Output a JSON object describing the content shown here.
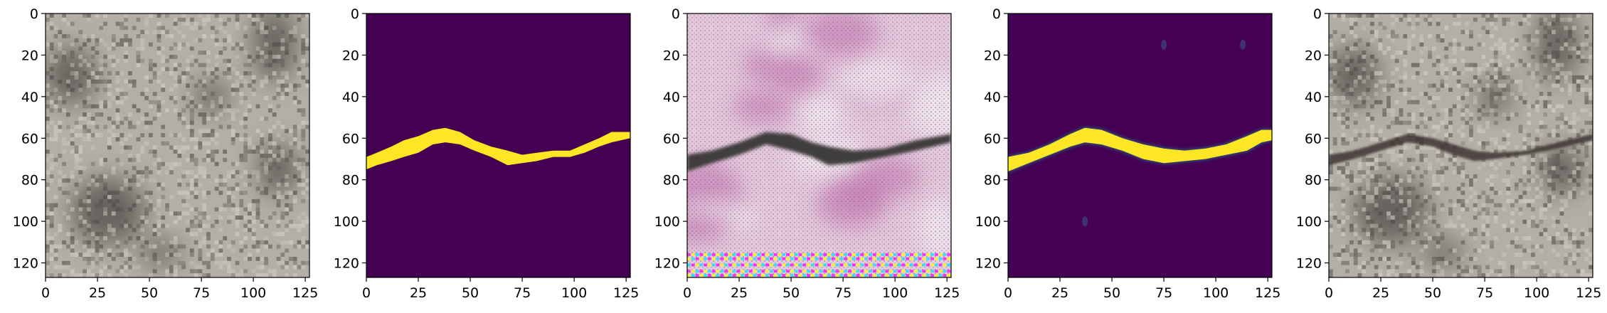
{
  "chart_data": [
    {
      "type": "heatmap",
      "content": "grayscale concrete surface texture image",
      "xlim": [
        0,
        127
      ],
      "ylim": [
        127,
        0
      ],
      "xticks": [
        "0",
        "25",
        "50",
        "75",
        "100",
        "125"
      ],
      "yticks": [
        "0",
        "20",
        "40",
        "60",
        "80",
        "100",
        "120"
      ],
      "palette": {
        "base": "#b4afa6",
        "light": "#d8d3ca",
        "dark": "#4b4945"
      },
      "dark_regions": [
        {
          "x": 12,
          "y": 30,
          "rx": 12,
          "ry": 14
        },
        {
          "x": 30,
          "y": 95,
          "rx": 18,
          "ry": 16
        },
        {
          "x": 110,
          "y": 15,
          "rx": 10,
          "ry": 18
        },
        {
          "x": 112,
          "y": 75,
          "rx": 10,
          "ry": 12
        },
        {
          "x": 80,
          "y": 40,
          "rx": 8,
          "ry": 8
        },
        {
          "x": 55,
          "y": 115,
          "rx": 10,
          "ry": 6
        }
      ]
    },
    {
      "type": "heatmap",
      "content": "binary crack mask (viridis colormap)",
      "xlim": [
        0,
        127
      ],
      "ylim": [
        127,
        0
      ],
      "xticks": [
        "0",
        "25",
        "50",
        "75",
        "100",
        "125"
      ],
      "yticks": [
        "0",
        "20",
        "40",
        "60",
        "80",
        "100",
        "120"
      ],
      "colors": {
        "background": "#440154",
        "crack": "#fde725"
      },
      "crack_top": [
        [
          0,
          69
        ],
        [
          5,
          67
        ],
        [
          12,
          64
        ],
        [
          18,
          61
        ],
        [
          25,
          59
        ],
        [
          32,
          56
        ],
        [
          38,
          55
        ],
        [
          45,
          57
        ],
        [
          52,
          61
        ],
        [
          60,
          64
        ],
        [
          68,
          66
        ],
        [
          75,
          68
        ],
        [
          82,
          67
        ],
        [
          90,
          66
        ],
        [
          98,
          66
        ],
        [
          105,
          63
        ],
        [
          112,
          60
        ],
        [
          118,
          57
        ],
        [
          127,
          57
        ]
      ],
      "crack_bottom": [
        [
          127,
          60
        ],
        [
          118,
          62
        ],
        [
          112,
          64
        ],
        [
          105,
          67
        ],
        [
          98,
          69
        ],
        [
          90,
          69
        ],
        [
          82,
          71
        ],
        [
          75,
          72
        ],
        [
          68,
          73
        ],
        [
          60,
          69
        ],
        [
          52,
          66
        ],
        [
          45,
          63
        ],
        [
          38,
          62
        ],
        [
          32,
          63
        ],
        [
          25,
          67
        ],
        [
          18,
          69
        ],
        [
          12,
          71
        ],
        [
          5,
          73
        ],
        [
          0,
          75
        ]
      ]
    },
    {
      "type": "heatmap",
      "content": "generated RGB image: pink/white texture with dark crack band and colored artifact rows at bottom",
      "xlim": [
        0,
        127
      ],
      "ylim": [
        127,
        0
      ],
      "xticks": [
        "0",
        "25",
        "50",
        "75",
        "100",
        "125"
      ],
      "yticks": [
        "0",
        "20",
        "40",
        "60",
        "80",
        "100",
        "120"
      ],
      "colors": {
        "background": "#e7c8dc",
        "pink": "#c97fb5",
        "white": "#f5eef2",
        "crack": "#3f3d3c",
        "artifact_magenta": "#ff00ff",
        "artifact_yellow": "#ffff00",
        "artifact_cyan": "#00e5ff"
      },
      "crack_top": [
        [
          0,
          68
        ],
        [
          12,
          66
        ],
        [
          25,
          62
        ],
        [
          38,
          57
        ],
        [
          50,
          58
        ],
        [
          60,
          62
        ],
        [
          68,
          64
        ],
        [
          80,
          66
        ],
        [
          95,
          65
        ],
        [
          110,
          61
        ],
        [
          127,
          58
        ]
      ],
      "crack_bottom": [
        [
          127,
          62
        ],
        [
          110,
          66
        ],
        [
          95,
          69
        ],
        [
          80,
          72
        ],
        [
          68,
          73
        ],
        [
          60,
          69
        ],
        [
          50,
          66
        ],
        [
          38,
          63
        ],
        [
          25,
          68
        ],
        [
          12,
          72
        ],
        [
          0,
          76
        ]
      ],
      "artifact_rows": [
        116,
        118,
        121,
        124,
        126
      ]
    },
    {
      "type": "heatmap",
      "content": "predicted crack probability map (viridis colormap)",
      "xlim": [
        0,
        127
      ],
      "ylim": [
        127,
        0
      ],
      "xticks": [
        "0",
        "25",
        "50",
        "75",
        "100",
        "125"
      ],
      "yticks": [
        "0",
        "20",
        "40",
        "60",
        "80",
        "100",
        "120"
      ],
      "colors": {
        "background": "#440154",
        "crack": "#fde725",
        "edge": "#21918c"
      },
      "crack_top": [
        [
          0,
          69
        ],
        [
          10,
          67
        ],
        [
          20,
          63
        ],
        [
          30,
          58
        ],
        [
          37,
          55
        ],
        [
          45,
          56
        ],
        [
          55,
          60
        ],
        [
          65,
          63
        ],
        [
          75,
          65
        ],
        [
          85,
          66
        ],
        [
          95,
          65
        ],
        [
          105,
          63
        ],
        [
          115,
          59
        ],
        [
          122,
          56
        ],
        [
          127,
          56
        ]
      ],
      "crack_bottom": [
        [
          127,
          61
        ],
        [
          122,
          62
        ],
        [
          115,
          66
        ],
        [
          105,
          68
        ],
        [
          95,
          70
        ],
        [
          85,
          71
        ],
        [
          75,
          72
        ],
        [
          65,
          70
        ],
        [
          55,
          66
        ],
        [
          45,
          63
        ],
        [
          37,
          62
        ],
        [
          30,
          64
        ],
        [
          20,
          68
        ],
        [
          10,
          72
        ],
        [
          0,
          76
        ]
      ],
      "blobs": [
        [
          75,
          15
        ],
        [
          113,
          15
        ],
        [
          37,
          100
        ]
      ]
    },
    {
      "type": "heatmap",
      "content": "original concrete texture with generated dark crack overlay",
      "xlim": [
        0,
        127
      ],
      "ylim": [
        127,
        0
      ],
      "xticks": [
        "0",
        "25",
        "50",
        "75",
        "100",
        "125"
      ],
      "yticks": [
        "0",
        "20",
        "40",
        "60",
        "80",
        "100",
        "120"
      ],
      "palette": {
        "base": "#b4afa6",
        "light": "#d8d3ca",
        "dark": "#4b4945",
        "crack": "#3c3532"
      },
      "dark_regions": [
        {
          "x": 12,
          "y": 30,
          "rx": 12,
          "ry": 14
        },
        {
          "x": 30,
          "y": 95,
          "rx": 18,
          "ry": 16
        },
        {
          "x": 110,
          "y": 15,
          "rx": 10,
          "ry": 18
        },
        {
          "x": 112,
          "y": 75,
          "rx": 10,
          "ry": 12
        },
        {
          "x": 80,
          "y": 40,
          "rx": 8,
          "ry": 8
        },
        {
          "x": 55,
          "y": 115,
          "rx": 10,
          "ry": 6
        }
      ],
      "crack_top": [
        [
          0,
          68
        ],
        [
          12,
          66
        ],
        [
          25,
          62
        ],
        [
          38,
          58
        ],
        [
          50,
          60
        ],
        [
          60,
          63
        ],
        [
          70,
          66
        ],
        [
          80,
          67
        ],
        [
          95,
          66
        ],
        [
          110,
          62
        ],
        [
          127,
          58
        ]
      ],
      "crack_bottom": [
        [
          127,
          61
        ],
        [
          110,
          65
        ],
        [
          95,
          68
        ],
        [
          80,
          70
        ],
        [
          70,
          71
        ],
        [
          60,
          68
        ],
        [
          50,
          64
        ],
        [
          38,
          62
        ],
        [
          25,
          66
        ],
        [
          12,
          70
        ],
        [
          0,
          73
        ]
      ]
    }
  ]
}
